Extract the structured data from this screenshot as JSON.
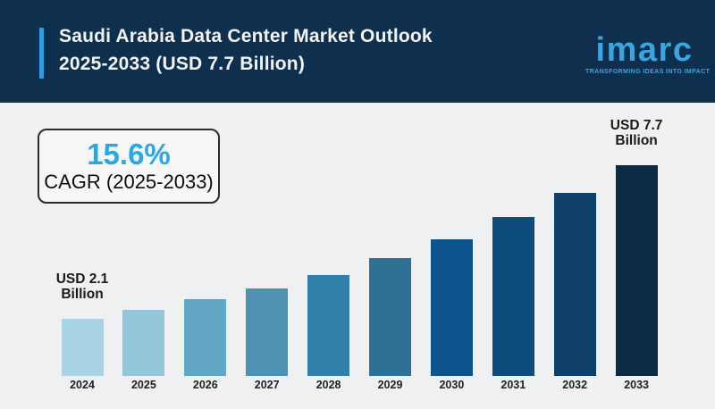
{
  "header": {
    "title_line1": "Saudi Arabia Data Center Market Outlook",
    "title_line2": "2025-2033 (USD 7.7 Billion)",
    "logo_text": "imarc",
    "logo_tagline": "TRANSFORMING IDEAS INTO IMPACT"
  },
  "cagr_box": {
    "value": "15.6%",
    "label": "CAGR (2025-2033)"
  },
  "colors": {
    "header_background": "#0f2f4e",
    "accent_blue": "#2d9fe0",
    "logo_blue": "#38a6e0",
    "cagr_value_blue": "#29a9e2",
    "page_background": "#eef0f1",
    "title_text": "#f2f5f7",
    "label_text": "#1a1a1a"
  },
  "chart_data": {
    "type": "bar",
    "title": "Saudi Arabia Data Center Market Outlook 2025-2033 (USD 7.7 Billion)",
    "unit": "USD Billion",
    "categories": [
      "2024",
      "2025",
      "2026",
      "2027",
      "2028",
      "2029",
      "2030",
      "2031",
      "2032",
      "2033"
    ],
    "values": [
      2.1,
      2.4,
      2.8,
      3.2,
      3.7,
      4.3,
      5.0,
      5.8,
      6.7,
      7.7
    ],
    "ylim": [
      0,
      7.7
    ],
    "xlabel": "",
    "ylabel": "",
    "grid": false,
    "legend": "none",
    "bar_colors": [
      "#a9d4e6",
      "#93c6db",
      "#63a7c6",
      "#5092b3",
      "#3180a9",
      "#2e7195",
      "#0d538c",
      "#0e4c7c",
      "#0d3f68",
      "#0d2a45"
    ],
    "annotations": [
      {
        "category": "2024",
        "lines": [
          "USD 2.1",
          "Billion"
        ]
      },
      {
        "category": "2033",
        "lines": [
          "USD 7.7",
          "Billion"
        ]
      }
    ]
  }
}
